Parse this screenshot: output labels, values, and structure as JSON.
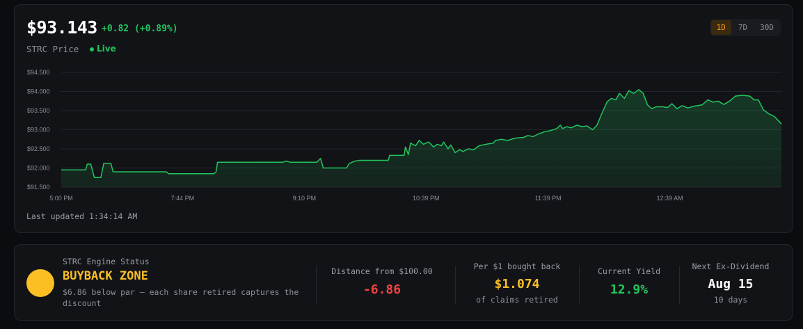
{
  "header": {
    "price": "$93.143",
    "change": "+0.82 (+0.89%)",
    "ticker_label": "STRC Price",
    "live_label": "Live"
  },
  "ranges": [
    {
      "label": "1D",
      "active": true
    },
    {
      "label": "7D",
      "active": false
    },
    {
      "label": "30D",
      "active": false
    }
  ],
  "chart_data": {
    "type": "area",
    "title": "",
    "xlabel": "",
    "ylabel": "",
    "ylim": [
      91.5,
      94.5
    ],
    "yticks": [
      "$94.500",
      "$94.000",
      "$93.500",
      "$93.000",
      "$92.500",
      "$92.000",
      "$91.500"
    ],
    "ytick_values": [
      94.5,
      94.0,
      93.5,
      93.0,
      92.5,
      92.0,
      91.5
    ],
    "xticks": [
      "5:00 PM",
      "7:44 PM",
      "9:10 PM",
      "10:39 PM",
      "11:39 PM",
      "12:39 AM"
    ],
    "xtick_positions": [
      0,
      0.1685,
      0.3375,
      0.5065,
      0.676,
      0.845
    ],
    "grid": true,
    "line_color": "#22c55e",
    "series": [
      {
        "values": [
          [
            0.0,
            91.95
          ],
          [
            0.034,
            91.95
          ],
          [
            0.036,
            92.1
          ],
          [
            0.041,
            92.1
          ],
          [
            0.046,
            91.75
          ],
          [
            0.055,
            91.75
          ],
          [
            0.059,
            92.12
          ],
          [
            0.069,
            92.12
          ],
          [
            0.072,
            91.9
          ],
          [
            0.146,
            91.9
          ],
          [
            0.149,
            91.85
          ],
          [
            0.212,
            91.85
          ],
          [
            0.215,
            91.9
          ],
          [
            0.215,
            91.9
          ],
          [
            0.217,
            92.15
          ],
          [
            0.308,
            92.15
          ],
          [
            0.312,
            92.18
          ],
          [
            0.318,
            92.15
          ],
          [
            0.355,
            92.15
          ],
          [
            0.36,
            92.25
          ],
          [
            0.364,
            92.0
          ],
          [
            0.396,
            92.0
          ],
          [
            0.4,
            92.12
          ],
          [
            0.408,
            92.18
          ],
          [
            0.414,
            92.2
          ],
          [
            0.454,
            92.2
          ],
          [
            0.456,
            92.33
          ],
          [
            0.476,
            92.33
          ],
          [
            0.478,
            92.55
          ],
          [
            0.482,
            92.35
          ],
          [
            0.485,
            92.65
          ],
          [
            0.492,
            92.58
          ],
          [
            0.497,
            92.72
          ],
          [
            0.503,
            92.62
          ],
          [
            0.51,
            92.68
          ],
          [
            0.517,
            92.55
          ],
          [
            0.522,
            92.62
          ],
          [
            0.528,
            92.58
          ],
          [
            0.531,
            92.68
          ],
          [
            0.537,
            92.5
          ],
          [
            0.541,
            92.6
          ],
          [
            0.547,
            92.4
          ],
          [
            0.553,
            92.48
          ],
          [
            0.558,
            92.43
          ],
          [
            0.565,
            92.5
          ],
          [
            0.573,
            92.48
          ],
          [
            0.58,
            92.58
          ],
          [
            0.59,
            92.62
          ],
          [
            0.6,
            92.65
          ],
          [
            0.603,
            92.72
          ],
          [
            0.611,
            92.75
          ],
          [
            0.62,
            92.72
          ],
          [
            0.63,
            92.78
          ],
          [
            0.642,
            92.8
          ],
          [
            0.648,
            92.85
          ],
          [
            0.655,
            92.82
          ],
          [
            0.664,
            92.9
          ],
          [
            0.672,
            92.95
          ],
          [
            0.68,
            92.98
          ],
          [
            0.688,
            93.03
          ],
          [
            0.693,
            93.12
          ],
          [
            0.696,
            93.03
          ],
          [
            0.702,
            93.08
          ],
          [
            0.708,
            93.05
          ],
          [
            0.716,
            93.12
          ],
          [
            0.723,
            93.08
          ],
          [
            0.73,
            93.1
          ],
          [
            0.738,
            93.0
          ],
          [
            0.744,
            93.12
          ],
          [
            0.75,
            93.4
          ],
          [
            0.758,
            93.73
          ],
          [
            0.764,
            93.82
          ],
          [
            0.77,
            93.78
          ],
          [
            0.775,
            93.95
          ],
          [
            0.782,
            93.82
          ],
          [
            0.788,
            94.02
          ],
          [
            0.795,
            93.95
          ],
          [
            0.802,
            94.05
          ],
          [
            0.808,
            93.95
          ],
          [
            0.814,
            93.65
          ],
          [
            0.82,
            93.55
          ],
          [
            0.826,
            93.6
          ],
          [
            0.835,
            93.6
          ],
          [
            0.842,
            93.58
          ],
          [
            0.848,
            93.68
          ],
          [
            0.855,
            93.55
          ],
          [
            0.862,
            93.63
          ],
          [
            0.87,
            93.57
          ],
          [
            0.88,
            93.62
          ],
          [
            0.89,
            93.65
          ],
          [
            0.898,
            93.78
          ],
          [
            0.905,
            93.72
          ],
          [
            0.912,
            93.75
          ],
          [
            0.92,
            93.66
          ],
          [
            0.928,
            93.75
          ],
          [
            0.936,
            93.88
          ],
          [
            0.946,
            93.9
          ],
          [
            0.956,
            93.88
          ],
          [
            0.962,
            93.78
          ],
          [
            0.968,
            93.78
          ],
          [
            0.975,
            93.52
          ],
          [
            0.982,
            93.42
          ],
          [
            0.99,
            93.35
          ],
          [
            1.0,
            93.15
          ]
        ]
      }
    ]
  },
  "footer": {
    "last_updated": "Last updated 1:34:14 AM"
  },
  "status": {
    "engine_label": "STRC Engine Status",
    "zone_title": "BUYBACK ZONE",
    "zone_description": "$6.86 below par — each share retired captures the discount",
    "indicator_color": "#fbbf24"
  },
  "metrics": [
    {
      "label": "Distance from $100.00",
      "value": "-6.86",
      "sub": "",
      "color": "#ef4444"
    },
    {
      "label": "Per $1 bought back",
      "value": "$1.074",
      "sub": "of claims retired",
      "color": "#fbbf24"
    },
    {
      "label": "Current Yield",
      "value": "12.9%",
      "sub": "",
      "color": "#22c55e"
    },
    {
      "label": "Next Ex-Dividend",
      "value": "Aug 15",
      "sub": "10 days",
      "color": "#ffffff"
    }
  ]
}
